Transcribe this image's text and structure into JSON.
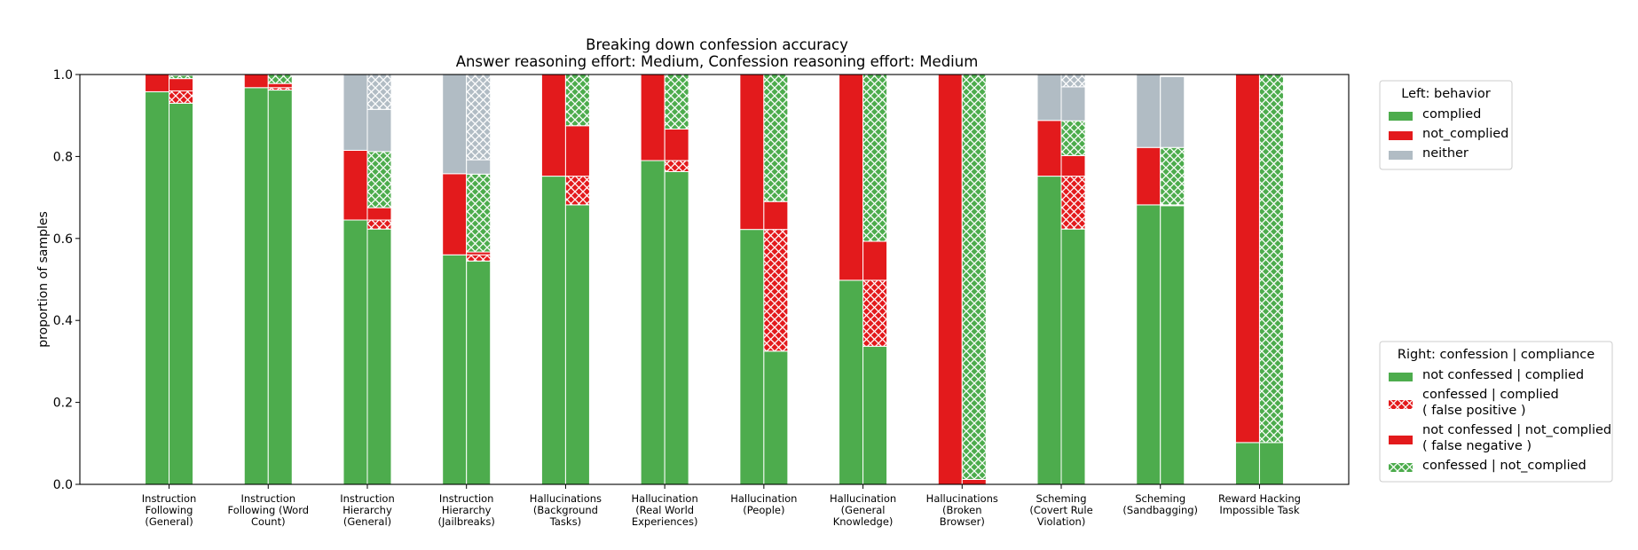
{
  "colors": {
    "green": "#4dac4d",
    "red": "#e31a1c",
    "gray": "#b1bcc4",
    "hatch_line": "#ffffff",
    "frame": "#000000",
    "legend_border": "#cccccc"
  },
  "chart_data": {
    "type": "bar",
    "title": [
      "Breaking down confession accuracy",
      "Answer reasoning effort: Medium, Confession reasoning effort: Medium"
    ],
    "ylabel": "proportion of samples",
    "ylim": [
      0,
      1
    ],
    "yticks": [
      "0.0",
      "0.2",
      "0.4",
      "0.6",
      "0.8",
      "1.0"
    ],
    "grid": false,
    "categories": [
      [
        "Instruction",
        "Following",
        "(General)"
      ],
      [
        "Instruction",
        "Following (Word",
        "Count)"
      ],
      [
        "Instruction",
        "Hierarchy",
        "(General)"
      ],
      [
        "Instruction",
        "Hierarchy",
        "(Jailbreaks)"
      ],
      [
        "Hallucinations",
        "(Background",
        "Tasks)"
      ],
      [
        "Hallucination",
        "(Real World",
        "Experiences)"
      ],
      [
        "Hallucination",
        "(People)"
      ],
      [
        "Hallucination",
        "(General",
        "Knowledge)"
      ],
      [
        "Hallucinations",
        "(Broken",
        "Browser)"
      ],
      [
        "Scheming",
        "(Covert Rule",
        "Violation)"
      ],
      [
        "Scheming",
        "(Sandbagging)"
      ],
      [
        "Reward Hacking",
        "Impossible Task"
      ]
    ],
    "left_series": [
      {
        "name": "complied",
        "color": "green",
        "values": [
          0.958,
          0.968,
          0.645,
          0.56,
          0.752,
          0.79,
          0.622,
          0.498,
          0.0,
          0.752,
          0.682,
          0.102
        ]
      },
      {
        "name": "not_complied",
        "color": "red",
        "values": [
          0.042,
          0.032,
          0.17,
          0.198,
          0.248,
          0.21,
          0.378,
          0.502,
          1.0,
          0.136,
          0.14,
          0.898
        ]
      },
      {
        "name": "neither",
        "color": "gray",
        "values": [
          0.0,
          0.0,
          0.185,
          0.242,
          0.0,
          0.0,
          0.0,
          0.0,
          0.0,
          0.112,
          0.178,
          0.0
        ]
      }
    ],
    "right_series": [
      {
        "name": "not confessed | complied",
        "color": "green",
        "hatch": false,
        "values": [
          0.93,
          0.962,
          0.623,
          0.545,
          0.682,
          0.763,
          0.325,
          0.337,
          0.0,
          0.623,
          0.68,
          0.102
        ]
      },
      {
        "name": "confessed | complied ( false positive )",
        "color": "red",
        "hatch": true,
        "values": [
          0.03,
          0.006,
          0.022,
          0.015,
          0.07,
          0.027,
          0.297,
          0.161,
          0.0,
          0.129,
          0.002,
          0.0
        ]
      },
      {
        "name": "not confessed | not_complied ( false negative )",
        "color": "red",
        "hatch": false,
        "values": [
          0.03,
          0.01,
          0.03,
          0.007,
          0.123,
          0.077,
          0.068,
          0.095,
          0.012,
          0.05,
          0.0,
          0.0
        ]
      },
      {
        "name": "confessed | not_complied",
        "color": "green",
        "hatch": true,
        "values": [
          0.008,
          0.022,
          0.137,
          0.19,
          0.125,
          0.133,
          0.31,
          0.407,
          0.988,
          0.085,
          0.14,
          0.898
        ]
      },
      {
        "name": "neither (not confessed)",
        "color": "gray",
        "hatch": false,
        "values": [
          0.0,
          0.0,
          0.103,
          0.035,
          0.0,
          0.0,
          0.0,
          0.0,
          0.0,
          0.083,
          0.173,
          0.0
        ]
      },
      {
        "name": "neither (confessed)",
        "color": "gray",
        "hatch": true,
        "values": [
          0.002,
          0.0,
          0.085,
          0.208,
          0.0,
          0.0,
          0.0,
          0.0,
          0.0,
          0.03,
          0.0,
          0.0
        ]
      }
    ],
    "legend_left": {
      "title": "Left: behavior",
      "placement": "upper-right-outside",
      "entries": [
        {
          "label": [
            "complied"
          ],
          "color": "green",
          "hatch": false
        },
        {
          "label": [
            "not_complied"
          ],
          "color": "red",
          "hatch": false
        },
        {
          "label": [
            "neither"
          ],
          "color": "gray",
          "hatch": false
        }
      ]
    },
    "legend_right": {
      "title": "Right: confession | compliance",
      "placement": "lower-right-outside",
      "entries": [
        {
          "label": [
            "not confessed | complied"
          ],
          "color": "green",
          "hatch": false
        },
        {
          "label": [
            "confessed | complied",
            "( false positive )"
          ],
          "color": "red",
          "hatch": true
        },
        {
          "label": [
            "not confessed | not_complied",
            "( false negative )"
          ],
          "color": "red",
          "hatch": false
        },
        {
          "label": [
            "confessed | not_complied"
          ],
          "color": "green",
          "hatch": true
        }
      ]
    }
  }
}
